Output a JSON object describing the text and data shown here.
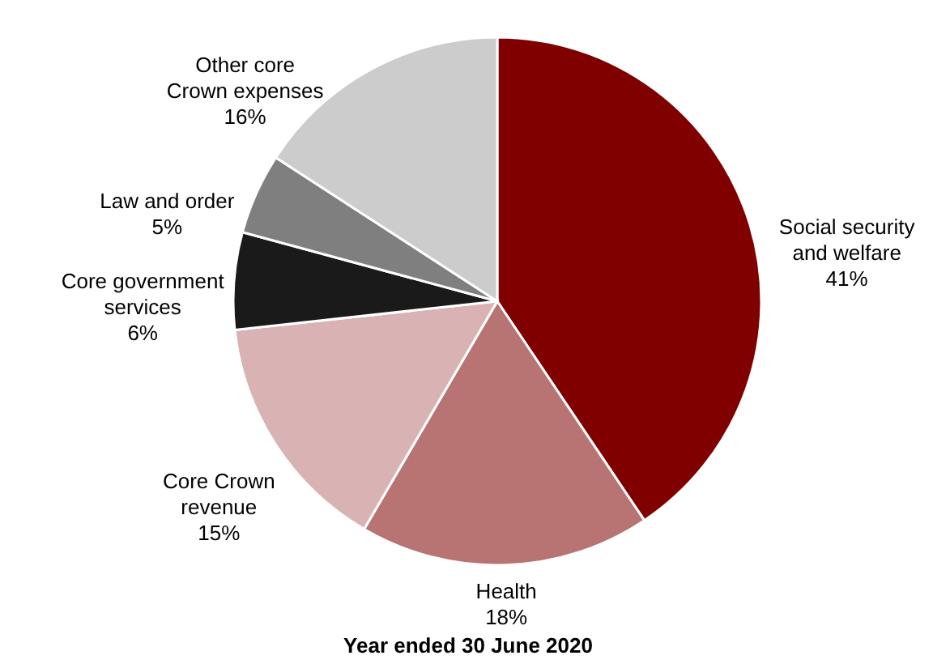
{
  "chart_data": {
    "type": "pie",
    "title": "Year ended 30 June 2020",
    "categories": [
      "Social security and welfare",
      "Health",
      "Core Crown revenue",
      "Core government services",
      "Law and order",
      "Other core Crown expenses"
    ],
    "values": [
      41,
      18,
      15,
      6,
      5,
      16
    ],
    "value_labels": [
      "41%",
      "18%",
      "15%",
      "6%",
      "5%",
      "16%"
    ],
    "colors": [
      "#800000",
      "#b87373",
      "#d9b3b3",
      "#1a1a1a",
      "#7f7f7f",
      "#cccccc"
    ]
  }
}
